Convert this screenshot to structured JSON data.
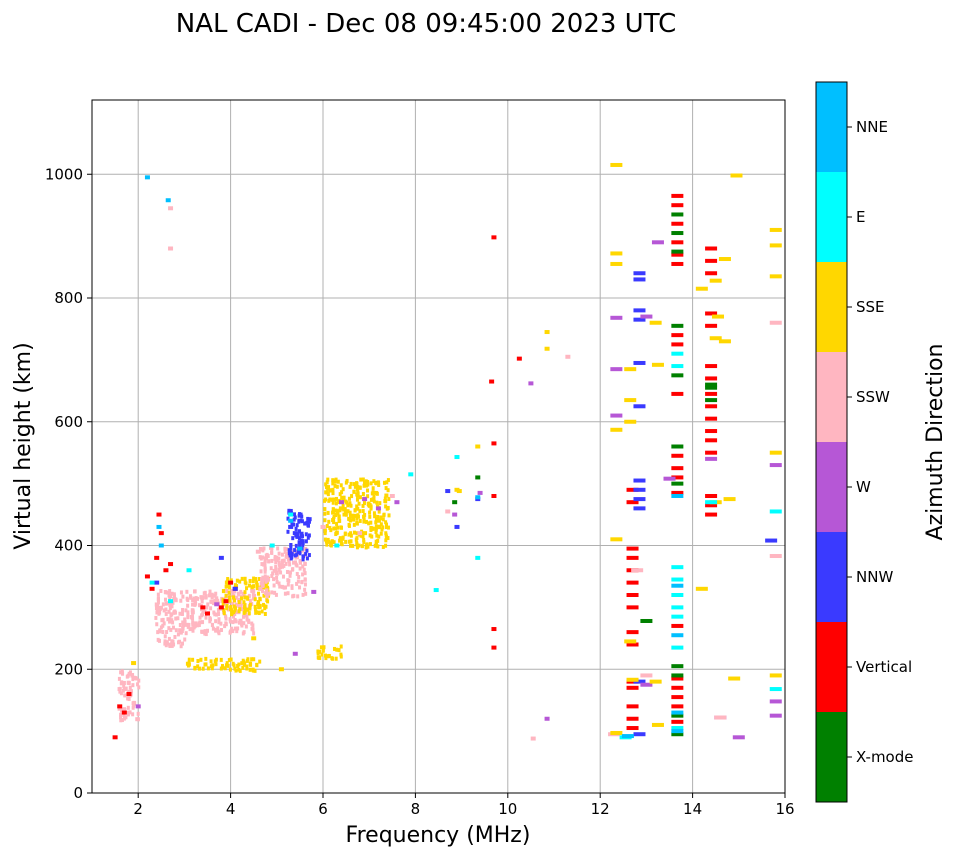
{
  "chart_data": {
    "type": "scatter",
    "title": "NAL CADI - Dec 08 09:45:00 2023 UTC",
    "xlabel": "Frequency (MHz)",
    "ylabel": "Virtual height (km)",
    "xlim": [
      1,
      16
    ],
    "ylim": [
      0,
      1120
    ],
    "xticks": [
      2,
      4,
      6,
      8,
      10,
      12,
      14,
      16
    ],
    "yticks": [
      0,
      200,
      400,
      600,
      800,
      1000
    ],
    "grid": true,
    "colorbar": {
      "title": "Azimuth Direction",
      "categories": [
        {
          "name": "X-mode",
          "color": "#008000"
        },
        {
          "name": "Vertical",
          "color": "#ff0000"
        },
        {
          "name": "NNW",
          "color": "#3a3aff"
        },
        {
          "name": "W",
          "color": "#b657d6"
        },
        {
          "name": "SSW",
          "color": "#ffb6c1"
        },
        {
          "name": "SSE",
          "color": "#ffd700"
        },
        {
          "name": "E",
          "color": "#00ffff"
        },
        {
          "name": "NNE",
          "color": "#00bfff"
        }
      ]
    },
    "blocks": [
      {
        "category": "SSW",
        "x": [
          1.55,
          2.0
        ],
        "y": [
          120,
          200
        ]
      },
      {
        "category": "SSW",
        "x": [
          2.35,
          3.0
        ],
        "y": [
          240,
          330
        ]
      },
      {
        "category": "SSW",
        "x": [
          3.0,
          4.5
        ],
        "y": [
          260,
          330
        ]
      },
      {
        "category": "SSE",
        "x": [
          3.8,
          4.8
        ],
        "y": [
          290,
          350
        ]
      },
      {
        "category": "SSW",
        "x": [
          4.6,
          5.6
        ],
        "y": [
          320,
          400
        ]
      },
      {
        "category": "SSE",
        "x": [
          3.0,
          4.6
        ],
        "y": [
          200,
          220
        ]
      },
      {
        "category": "SSE",
        "x": [
          5.8,
          6.4
        ],
        "y": [
          220,
          240
        ]
      },
      {
        "category": "SSE",
        "x": [
          6.0,
          7.4
        ],
        "y": [
          400,
          510
        ]
      },
      {
        "category": "NNW",
        "x": [
          5.2,
          5.7
        ],
        "y": [
          380,
          460
        ]
      }
    ],
    "series": [
      {
        "name": "Vertical",
        "points": [
          [
            1.6,
            140
          ],
          [
            1.7,
            130
          ],
          [
            1.8,
            160
          ],
          [
            2.2,
            350
          ],
          [
            2.3,
            330
          ],
          [
            2.4,
            380
          ],
          [
            2.5,
            420
          ],
          [
            2.45,
            450
          ],
          [
            2.6,
            360
          ],
          [
            2.7,
            370
          ],
          [
            3.4,
            300
          ],
          [
            3.5,
            290
          ],
          [
            3.8,
            300
          ],
          [
            3.9,
            310
          ],
          [
            4.0,
            340
          ],
          [
            4.1,
            330
          ],
          [
            1.5,
            90
          ],
          [
            9.7,
            898
          ],
          [
            9.7,
            565
          ],
          [
            9.7,
            480
          ],
          [
            9.65,
            665
          ],
          [
            10.25,
            702
          ],
          [
            9.7,
            265
          ],
          [
            9.7,
            235
          ],
          [
            12.7,
            395
          ],
          [
            12.7,
            380
          ],
          [
            12.7,
            360
          ],
          [
            12.7,
            340
          ],
          [
            12.7,
            320
          ],
          [
            12.7,
            300
          ],
          [
            12.7,
            260
          ],
          [
            12.7,
            240
          ],
          [
            12.7,
            180
          ],
          [
            12.7,
            170
          ],
          [
            12.7,
            140
          ],
          [
            12.7,
            120
          ],
          [
            12.7,
            105
          ],
          [
            12.7,
            470
          ],
          [
            12.7,
            490
          ],
          [
            13.67,
            965
          ],
          [
            13.67,
            950
          ],
          [
            13.67,
            920
          ],
          [
            13.67,
            890
          ],
          [
            13.67,
            870
          ],
          [
            13.67,
            855
          ],
          [
            13.67,
            740
          ],
          [
            13.67,
            725
          ],
          [
            13.67,
            645
          ],
          [
            13.67,
            545
          ],
          [
            13.67,
            525
          ],
          [
            13.67,
            510
          ],
          [
            13.67,
            485
          ],
          [
            13.67,
            270
          ],
          [
            13.67,
            185
          ],
          [
            13.67,
            170
          ],
          [
            13.67,
            155
          ],
          [
            13.67,
            140
          ],
          [
            13.67,
            115
          ],
          [
            14.4,
            880
          ],
          [
            14.4,
            860
          ],
          [
            14.4,
            840
          ],
          [
            14.4,
            775
          ],
          [
            14.4,
            755
          ],
          [
            14.4,
            690
          ],
          [
            14.4,
            670
          ],
          [
            14.4,
            645
          ],
          [
            14.4,
            625
          ],
          [
            14.4,
            605
          ],
          [
            14.4,
            585
          ],
          [
            14.4,
            570
          ],
          [
            14.4,
            550
          ],
          [
            14.4,
            480
          ],
          [
            14.4,
            465
          ],
          [
            14.4,
            450
          ]
        ]
      },
      {
        "name": "X-mode",
        "points": [
          [
            9.35,
            510
          ],
          [
            8.85,
            470
          ],
          [
            13.67,
            935
          ],
          [
            13.67,
            905
          ],
          [
            13.67,
            875
          ],
          [
            13.67,
            755
          ],
          [
            13.67,
            675
          ],
          [
            13.67,
            560
          ],
          [
            13.67,
            500
          ],
          [
            13.67,
            205
          ],
          [
            13.67,
            190
          ],
          [
            13.67,
            125
          ],
          [
            13.67,
            95
          ],
          [
            13.0,
            278
          ],
          [
            14.4,
            655
          ],
          [
            14.4,
            635
          ],
          [
            14.4,
            660
          ]
        ]
      },
      {
        "name": "NNW",
        "points": [
          [
            2.4,
            340
          ],
          [
            3.8,
            380
          ],
          [
            4.1,
            330
          ],
          [
            5.3,
            430
          ],
          [
            5.4,
            420
          ],
          [
            5.5,
            440
          ],
          [
            12.85,
            840
          ],
          [
            12.85,
            830
          ],
          [
            12.85,
            780
          ],
          [
            12.85,
            765
          ],
          [
            12.85,
            695
          ],
          [
            12.85,
            625
          ],
          [
            12.85,
            505
          ],
          [
            12.85,
            490
          ],
          [
            12.85,
            475
          ],
          [
            12.85,
            460
          ],
          [
            12.85,
            180
          ],
          [
            12.85,
            95
          ],
          [
            9.35,
            475
          ],
          [
            8.9,
            430
          ],
          [
            8.7,
            488
          ],
          [
            15.7,
            408
          ]
        ]
      },
      {
        "name": "W",
        "points": [
          [
            2.0,
            140
          ],
          [
            3.7,
            305
          ],
          [
            5.4,
            225
          ],
          [
            5.8,
            325
          ],
          [
            6.4,
            470
          ],
          [
            6.9,
            475
          ],
          [
            7.2,
            460
          ],
          [
            7.6,
            470
          ],
          [
            9.4,
            485
          ],
          [
            8.85,
            450
          ],
          [
            10.5,
            662
          ],
          [
            10.85,
            120
          ],
          [
            12.35,
            685
          ],
          [
            12.35,
            610
          ],
          [
            12.35,
            768
          ],
          [
            13.25,
            890
          ],
          [
            13.0,
            770
          ],
          [
            13.0,
            175
          ],
          [
            13.5,
            508
          ],
          [
            14.4,
            540
          ],
          [
            14.6,
            122
          ],
          [
            15.0,
            90
          ],
          [
            15.8,
            530
          ],
          [
            15.8,
            148
          ],
          [
            15.8,
            125
          ]
        ]
      },
      {
        "name": "SSW",
        "points": [
          [
            2.7,
            945
          ],
          [
            2.7,
            880
          ],
          [
            4.6,
            390
          ],
          [
            4.7,
            370
          ],
          [
            6.0,
            430
          ],
          [
            6.8,
            420
          ],
          [
            7.5,
            480
          ],
          [
            8.7,
            455
          ],
          [
            10.55,
            88
          ],
          [
            11.3,
            705
          ],
          [
            12.3,
            95
          ],
          [
            12.8,
            360
          ],
          [
            13.0,
            190
          ],
          [
            14.6,
            122
          ],
          [
            15.8,
            760
          ],
          [
            15.8,
            383
          ]
        ]
      },
      {
        "name": "SSE",
        "points": [
          [
            1.9,
            210
          ],
          [
            4.5,
            250
          ],
          [
            5.1,
            200
          ],
          [
            6.9,
            420
          ],
          [
            7.2,
            440
          ],
          [
            8.9,
            490
          ],
          [
            8.95,
            488
          ],
          [
            9.35,
            560
          ],
          [
            10.85,
            745
          ],
          [
            10.85,
            718
          ],
          [
            12.35,
            1015
          ],
          [
            12.35,
            872
          ],
          [
            12.35,
            855
          ],
          [
            12.35,
            587
          ],
          [
            12.35,
            410
          ],
          [
            12.35,
            97
          ],
          [
            12.65,
            685
          ],
          [
            12.65,
            635
          ],
          [
            12.65,
            600
          ],
          [
            12.65,
            245
          ],
          [
            12.7,
            183
          ],
          [
            13.2,
            760
          ],
          [
            13.25,
            692
          ],
          [
            13.25,
            110
          ],
          [
            13.2,
            180
          ],
          [
            14.2,
            815
          ],
          [
            14.2,
            330
          ],
          [
            14.5,
            828
          ],
          [
            14.55,
            770
          ],
          [
            14.5,
            735
          ],
          [
            14.7,
            863
          ],
          [
            14.7,
            730
          ],
          [
            14.8,
            475
          ],
          [
            14.9,
            185
          ],
          [
            14.95,
            998
          ],
          [
            15.8,
            910
          ],
          [
            15.8,
            885
          ],
          [
            15.8,
            835
          ],
          [
            15.8,
            550
          ],
          [
            15.8,
            190
          ],
          [
            14.5,
            470
          ]
        ]
      },
      {
        "name": "E",
        "points": [
          [
            2.3,
            340
          ],
          [
            2.7,
            310
          ],
          [
            3.1,
            360
          ],
          [
            4.9,
            400
          ],
          [
            5.3,
            450
          ],
          [
            6.3,
            400
          ],
          [
            7.9,
            515
          ],
          [
            8.45,
            328
          ],
          [
            8.9,
            543
          ],
          [
            9.35,
            380
          ],
          [
            12.55,
            90
          ],
          [
            13.67,
            710
          ],
          [
            13.67,
            690
          ],
          [
            13.67,
            365
          ],
          [
            13.67,
            345
          ],
          [
            13.67,
            320
          ],
          [
            13.67,
            300
          ],
          [
            13.67,
            285
          ],
          [
            13.67,
            235
          ],
          [
            13.67,
            105
          ],
          [
            14.4,
            470
          ],
          [
            15.8,
            455
          ],
          [
            15.8,
            168
          ]
        ]
      },
      {
        "name": "NNE",
        "points": [
          [
            2.2,
            995
          ],
          [
            2.65,
            958
          ],
          [
            2.45,
            430
          ],
          [
            2.5,
            400
          ],
          [
            5.3,
            440
          ],
          [
            5.5,
            395
          ],
          [
            9.35,
            478
          ],
          [
            12.6,
            92
          ],
          [
            13.67,
            480
          ],
          [
            13.67,
            335
          ],
          [
            13.67,
            255
          ],
          [
            13.67,
            100
          ],
          [
            13.67,
            130
          ]
        ]
      }
    ]
  }
}
